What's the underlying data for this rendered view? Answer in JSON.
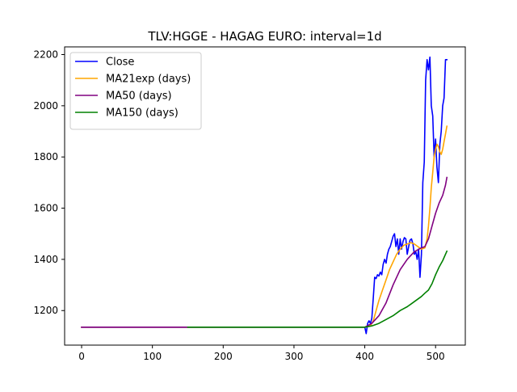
{
  "chart_data": {
    "type": "line",
    "title": "TLV:HGGE - HAGAG EURO: interval=1d",
    "xlabel": "",
    "ylabel": "",
    "xlim": [
      -24,
      542
    ],
    "ylim": [
      1065,
      2230
    ],
    "x_ticks": [
      0,
      100,
      200,
      300,
      400,
      500
    ],
    "y_ticks": [
      1200,
      1400,
      1600,
      1800,
      2000,
      2200
    ],
    "grid": false,
    "legend_position": "upper-left",
    "series": [
      {
        "name": "Close",
        "color": "#0000ff",
        "x": [
          0,
          100,
          200,
          300,
          400,
          402,
          404,
          406,
          408,
          410,
          412,
          414,
          416,
          418,
          420,
          422,
          424,
          426,
          428,
          430,
          432,
          434,
          436,
          438,
          440,
          442,
          444,
          446,
          448,
          450,
          452,
          454,
          456,
          458,
          460,
          462,
          464,
          466,
          468,
          470,
          472,
          474,
          476,
          478,
          480,
          482,
          484,
          486,
          488,
          490,
          492,
          494,
          496,
          498,
          500,
          502,
          504,
          506,
          508,
          510,
          512,
          514,
          516
        ],
        "values": [
          1135,
          1135,
          1135,
          1135,
          1135,
          1110,
          1150,
          1160,
          1150,
          1170,
          1250,
          1330,
          1325,
          1340,
          1335,
          1350,
          1340,
          1380,
          1400,
          1385,
          1420,
          1440,
          1450,
          1470,
          1490,
          1500,
          1450,
          1480,
          1420,
          1480,
          1440,
          1470,
          1485,
          1480,
          1420,
          1450,
          1475,
          1480,
          1460,
          1420,
          1430,
          1400,
          1440,
          1330,
          1420,
          1700,
          1780,
          2100,
          2180,
          2140,
          2190,
          2000,
          1960,
          1800,
          1870,
          1760,
          1700,
          1850,
          1900,
          2000,
          2030,
          2180,
          2180
        ]
      },
      {
        "name": "MA21exp (days)",
        "color": "#ffa500",
        "x": [
          0,
          50,
          100,
          200,
          300,
          400,
          408,
          412,
          416,
          420,
          425,
          430,
          435,
          440,
          445,
          450,
          455,
          460,
          465,
          470,
          475,
          480,
          485,
          488,
          490,
          492,
          494,
          496,
          498,
          500,
          502,
          504,
          506,
          508,
          510,
          512,
          514,
          516
        ],
        "values": [
          1135,
          1135,
          1135,
          1135,
          1135,
          1135,
          1140,
          1160,
          1200,
          1240,
          1280,
          1320,
          1360,
          1390,
          1420,
          1440,
          1455,
          1460,
          1465,
          1460,
          1450,
          1440,
          1445,
          1480,
          1530,
          1600,
          1680,
          1740,
          1800,
          1830,
          1850,
          1840,
          1820,
          1810,
          1830,
          1860,
          1890,
          1920
        ]
      },
      {
        "name": "MA50 (days)",
        "color": "#800080",
        "x": [
          0,
          50,
          100,
          150,
          200,
          300,
          400,
          410,
          420,
          430,
          440,
          450,
          460,
          470,
          480,
          485,
          490,
          495,
          500,
          505,
          510,
          514,
          516
        ],
        "values": [
          1135,
          1135,
          1135,
          1135,
          1135,
          1135,
          1135,
          1150,
          1180,
          1230,
          1300,
          1360,
          1400,
          1430,
          1445,
          1450,
          1480,
          1530,
          1580,
          1620,
          1650,
          1690,
          1720
        ]
      },
      {
        "name": "MA150 (days)",
        "color": "#008000",
        "x": [
          150,
          200,
          300,
          400,
          410,
          420,
          430,
          440,
          450,
          460,
          470,
          480,
          485,
          490,
          495,
          500,
          505,
          510,
          514,
          516
        ],
        "values": [
          1135,
          1135,
          1135,
          1135,
          1140,
          1150,
          1165,
          1180,
          1200,
          1215,
          1235,
          1255,
          1268,
          1280,
          1305,
          1340,
          1370,
          1395,
          1420,
          1432
        ]
      }
    ]
  }
}
